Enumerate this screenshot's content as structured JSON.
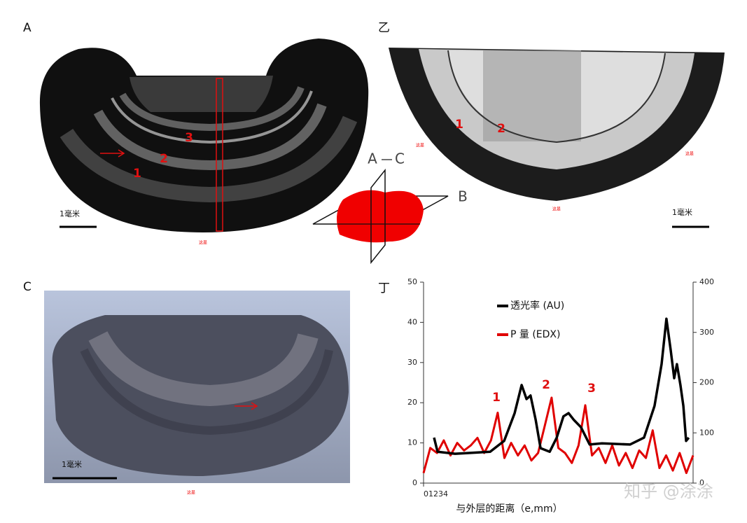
{
  "panels": {
    "a": {
      "label": "A",
      "scale": "1毫米",
      "marks": [
        "1",
        "2",
        "3"
      ],
      "notes": [
        "这是"
      ]
    },
    "b": {
      "label": "乙",
      "scale": "1毫米",
      "marks": [
        "1",
        "2"
      ],
      "notes": [
        "这是",
        "这是",
        "这是"
      ]
    },
    "c": {
      "label": "C",
      "scale": "1毫米",
      "notes": [
        "这是"
      ]
    },
    "d": {
      "label": "丁"
    }
  },
  "diagram": {
    "labels": [
      "A",
      "C",
      "B"
    ]
  },
  "watermark": "知乎 @涂涂",
  "chart_data": {
    "type": "line",
    "x_label": "与外层的距离（e,mm）",
    "xlim": [
      0,
      100
    ],
    "xticks": [
      {
        "value": 0,
        "label": "01234"
      }
    ],
    "ylim": [
      0,
      50
    ],
    "yticks": [
      0,
      10,
      20,
      30,
      40,
      50
    ],
    "y2lim": [
      0,
      400
    ],
    "y2ticks": [
      0,
      100,
      200,
      300,
      400
    ],
    "legend": "upper center",
    "annotations": [
      "1",
      "2",
      "3"
    ],
    "series": [
      {
        "name": "透光率 (AU)",
        "color": "#000000",
        "x": [
          3.9,
          5.2,
          11.7,
          24.7,
          29.9,
          33.8,
          36.4,
          38.2,
          39.7,
          41.6,
          43.4,
          46.8,
          49.4,
          51.9,
          53.8,
          55.8,
          58.4,
          61.6,
          66.2,
          76.6,
          81.8,
          85.7,
          88.3,
          90.1,
          91.7,
          93.0,
          94.0,
          95.3,
          96.4,
          97.4,
          98.4
        ],
        "values": [
          11.3,
          7.8,
          7.3,
          7.8,
          10.5,
          17.4,
          24.4,
          20.9,
          21.8,
          15.7,
          8.7,
          7.8,
          11.3,
          16.6,
          17.4,
          15.7,
          13.9,
          9.6,
          9.9,
          9.6,
          11.3,
          19.2,
          29.6,
          40.9,
          33.1,
          26.1,
          29.6,
          24.4,
          19.2,
          10.5,
          11.3
        ]
      },
      {
        "name": "P 量 (EDX)",
        "color": "#e00000",
        "axis": "y2",
        "x": [
          0,
          2.5,
          5,
          7.5,
          10,
          12.5,
          15,
          17.5,
          20,
          22.5,
          25,
          27.5,
          30,
          32.5,
          35,
          37.5,
          40,
          42.5,
          45,
          47.5,
          50,
          52.5,
          55,
          57.5,
          60,
          62.5,
          65,
          67.5,
          70,
          72.5,
          75,
          77.5,
          80,
          82.5,
          85,
          87.5,
          90,
          92.5,
          95,
          97.5,
          100
        ],
        "values": [
          20,
          70,
          60,
          85,
          55,
          80,
          65,
          75,
          90,
          60,
          85,
          140,
          50,
          80,
          55,
          75,
          45,
          60,
          115,
          170,
          70,
          60,
          40,
          75,
          155,
          55,
          70,
          40,
          75,
          35,
          60,
          30,
          65,
          50,
          105,
          30,
          55,
          25,
          60,
          20,
          55
        ]
      }
    ]
  }
}
